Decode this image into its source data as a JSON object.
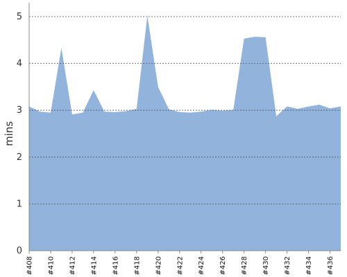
{
  "chart_data": {
    "type": "area",
    "ylabel": "mins",
    "xlabel": "",
    "ylim": [
      0,
      5
    ],
    "y_ticks": [
      "0",
      "1",
      "2",
      "3",
      "4",
      "5"
    ],
    "grid": true,
    "fill_color": "#91b3dc",
    "categories": [
      "#408",
      "#409",
      "#410",
      "#411",
      "#412",
      "#413",
      "#414",
      "#415",
      "#416",
      "#417",
      "#418",
      "#419",
      "#420",
      "#421",
      "#422",
      "#423",
      "#424",
      "#425",
      "#426",
      "#427",
      "#428",
      "#429",
      "#430",
      "#431",
      "#432",
      "#433",
      "#434",
      "#435",
      "#436",
      "#437"
    ],
    "x_tick_labels": [
      "#408",
      "#410",
      "#412",
      "#414",
      "#416",
      "#418",
      "#420",
      "#422",
      "#424",
      "#426",
      "#428",
      "#430",
      "#432",
      "#434",
      "#436"
    ],
    "values": [
      3.08,
      2.97,
      2.95,
      4.33,
      2.91,
      2.95,
      3.43,
      2.97,
      2.96,
      2.98,
      3.03,
      5.02,
      3.5,
      3.02,
      2.96,
      2.95,
      2.97,
      3.01,
      2.99,
      3.01,
      4.53,
      4.57,
      4.56,
      2.87,
      3.08,
      3.03,
      3.08,
      3.12,
      3.04,
      3.08
    ]
  }
}
